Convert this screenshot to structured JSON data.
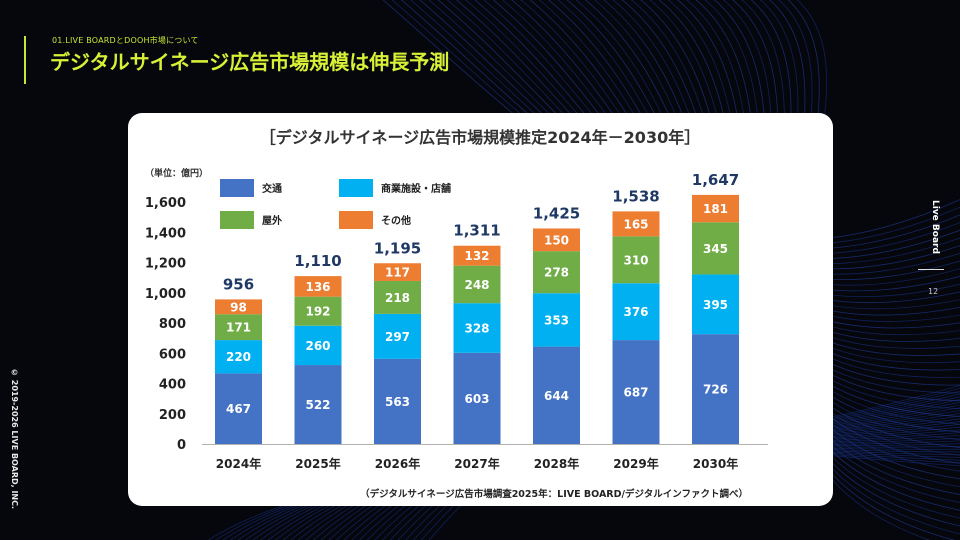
{
  "page": {
    "subtitle": "01.LIVE BOARDとDOOH市場について",
    "title": "デジタルサイネージ広告市場規模は伸長予測",
    "brand": "Live Board",
    "page_number": "12",
    "copyright": "© 2019-2026 LIVE BOARD, INC.",
    "accent_color": "#d8f036"
  },
  "chart_data": {
    "type": "bar",
    "stacked": true,
    "title": "［デジタルサイネージ広告市場規模推定2024年－2030年］",
    "unit_label": "（単位：億円）",
    "source": "（デジタルサイネージ広告市場調査2025年：LIVE BOARD/デジタルインファクト調べ）",
    "categories": [
      "2024年",
      "2025年",
      "2026年",
      "2027年",
      "2028年",
      "2029年",
      "2030年"
    ],
    "series": [
      {
        "name": "交通",
        "color": "#4472c4",
        "values": [
          467,
          522,
          563,
          603,
          644,
          687,
          726
        ]
      },
      {
        "name": "商業施設・店舗",
        "color": "#00b0f0",
        "values": [
          220,
          260,
          297,
          328,
          353,
          376,
          395
        ]
      },
      {
        "name": "屋外",
        "color": "#70ad47",
        "values": [
          171,
          192,
          218,
          248,
          278,
          310,
          345
        ]
      },
      {
        "name": "その他",
        "color": "#ed7d31",
        "values": [
          98,
          136,
          117,
          132,
          150,
          165,
          181
        ]
      }
    ],
    "totals": [
      "956",
      "1,110",
      "1,195",
      "1,311",
      "1,425",
      "1,538",
      "1,647"
    ],
    "y_ticks": [
      "0",
      "200",
      "400",
      "600",
      "800",
      "1,000",
      "1,200",
      "1,400",
      "1,600"
    ],
    "ylim": [
      0,
      1600
    ],
    "legend_position": "top-left",
    "grid": false
  }
}
